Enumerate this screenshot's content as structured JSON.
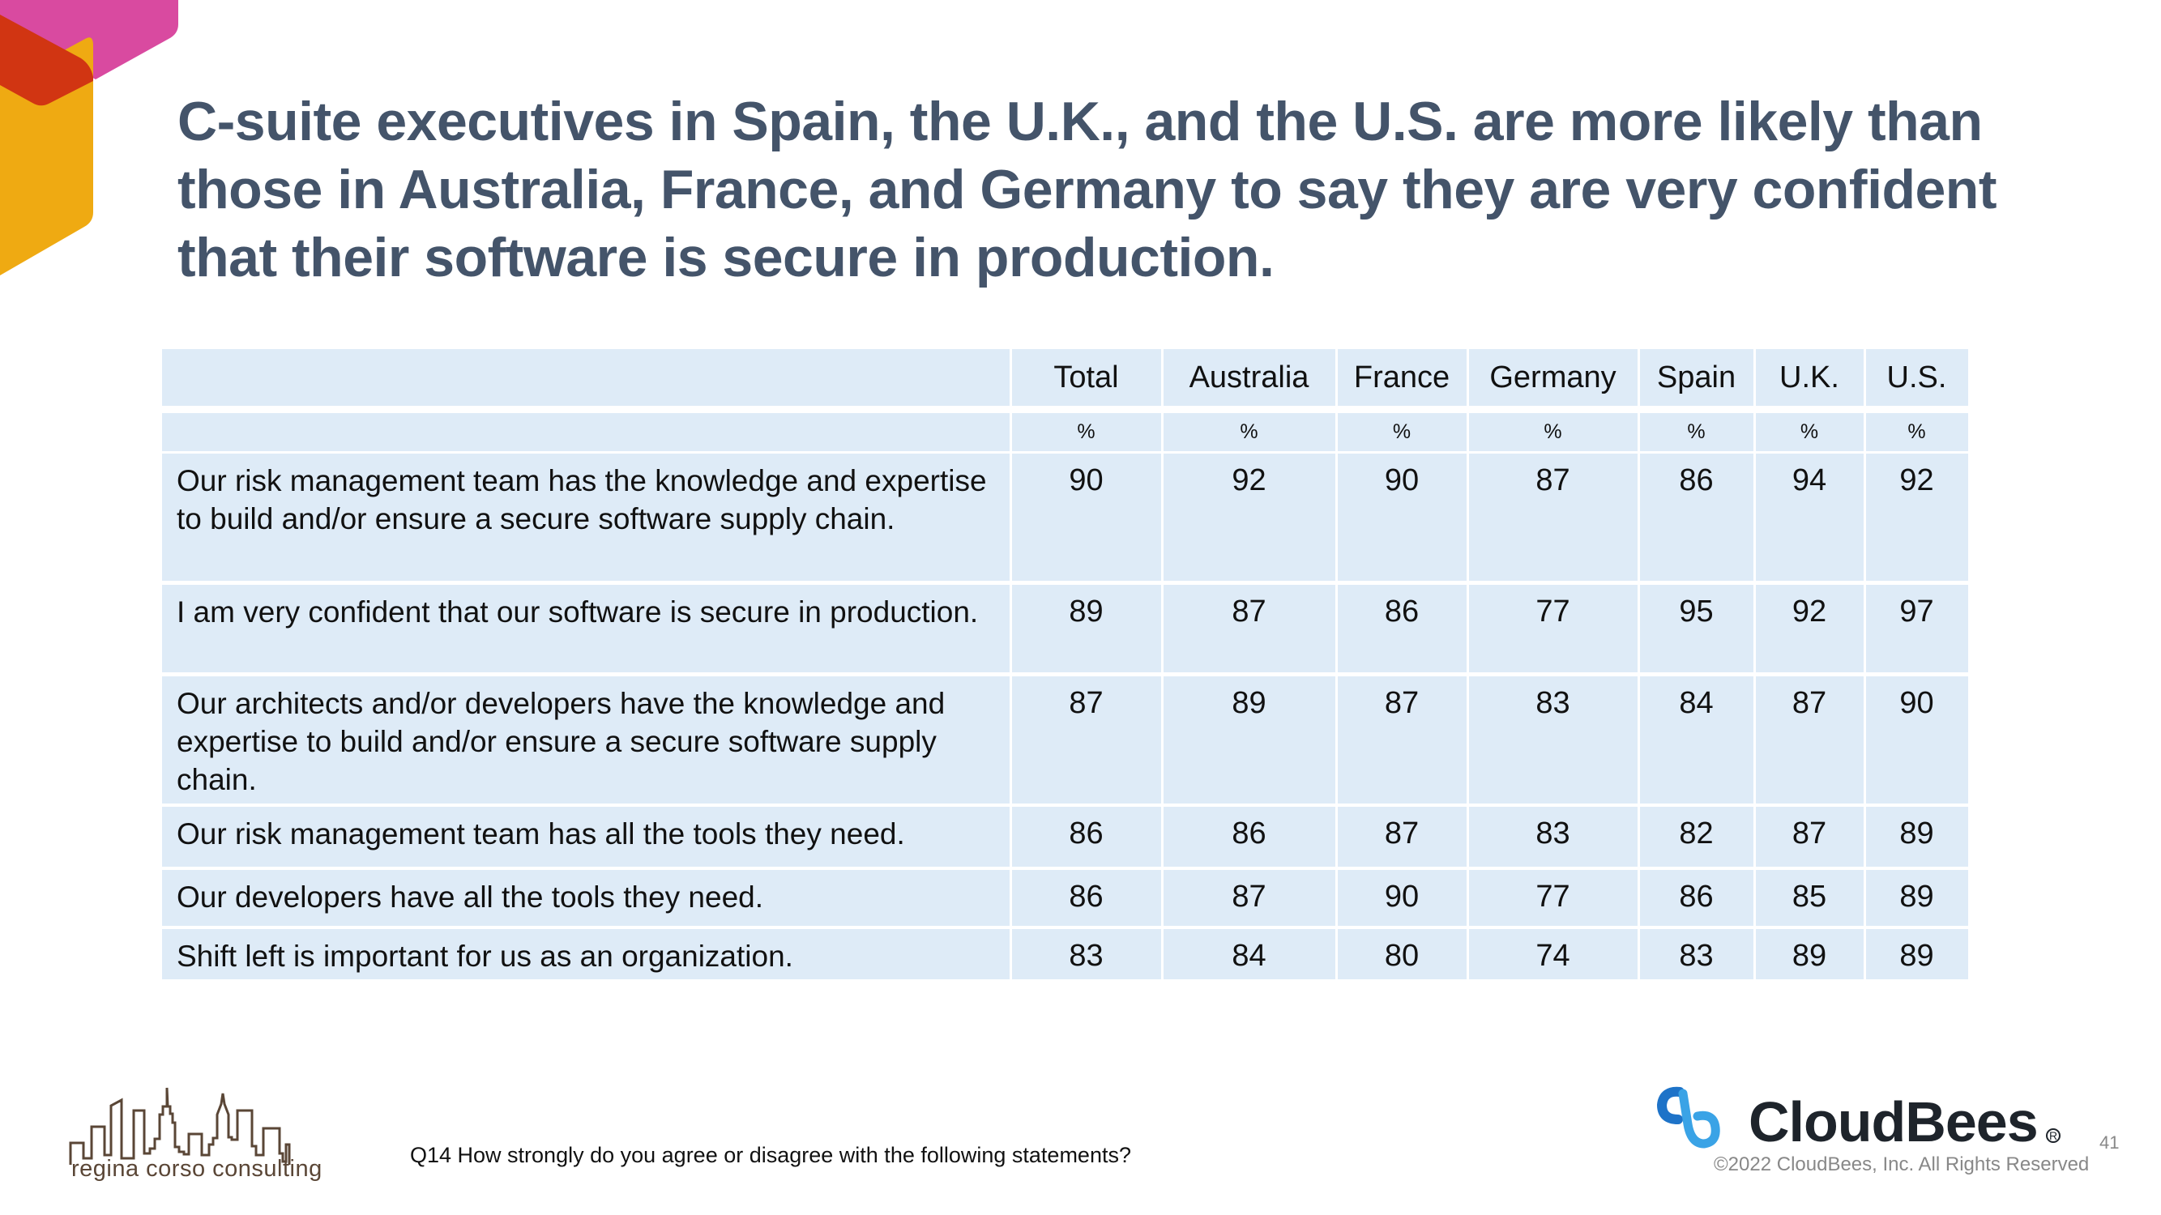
{
  "slide": {
    "title": "C-suite executives in Spain, the U.K., and the U.S. are more likely than those in Australia, France, and Germany to say they are very confident that their software is secure in production.",
    "page_number": "41",
    "footnote": "Q14 How strongly do you agree or disagree with the following statements?"
  },
  "colors": {
    "title": "#44546A",
    "cell_background": "#DEEBF7",
    "corner_pink": "#D94AA0",
    "corner_red": "#D13512",
    "corner_yellow": "#EFAA12",
    "cloudbees_blue": "#2B8FD6"
  },
  "table": {
    "columns": [
      "Total",
      "Australia",
      "France",
      "Germany",
      "Spain",
      "U.K.",
      "U.S."
    ],
    "unit_row": [
      "%",
      "%",
      "%",
      "%",
      "%",
      "%",
      "%"
    ],
    "rows": [
      {
        "label": "Our risk management team has the knowledge and expertise to build and/or ensure a secure software supply chain.",
        "values": [
          "90",
          "92",
          "90",
          "87",
          "86",
          "94",
          "92"
        ]
      },
      {
        "label": "I am very confident that our software is secure in production.",
        "values": [
          "89",
          "87",
          "86",
          "77",
          "95",
          "92",
          "97"
        ]
      },
      {
        "label": "Our architects and/or developers have the knowledge and expertise to build and/or ensure a secure software supply chain.",
        "values": [
          "87",
          "89",
          "87",
          "83",
          "84",
          "87",
          "90"
        ]
      },
      {
        "label": "Our risk management team has all the tools they need.",
        "values": [
          "86",
          "86",
          "87",
          "83",
          "82",
          "87",
          "89"
        ]
      },
      {
        "label": "Our developers have all the tools they need.",
        "values": [
          "86",
          "87",
          "90",
          "77",
          "86",
          "85",
          "89"
        ]
      },
      {
        "label": "Shift left is important for us as an organization.",
        "values": [
          "83",
          "84",
          "80",
          "74",
          "83",
          "89",
          "89"
        ]
      }
    ]
  },
  "logos": {
    "left": {
      "icon": "city-skyline-icon",
      "text": "regina corso consulting"
    },
    "right": {
      "icon": "cloudbees-icon",
      "name": "CloudBees",
      "registered": "R",
      "copyright": "©2022 CloudBees, Inc. All Rights Reserved"
    }
  }
}
